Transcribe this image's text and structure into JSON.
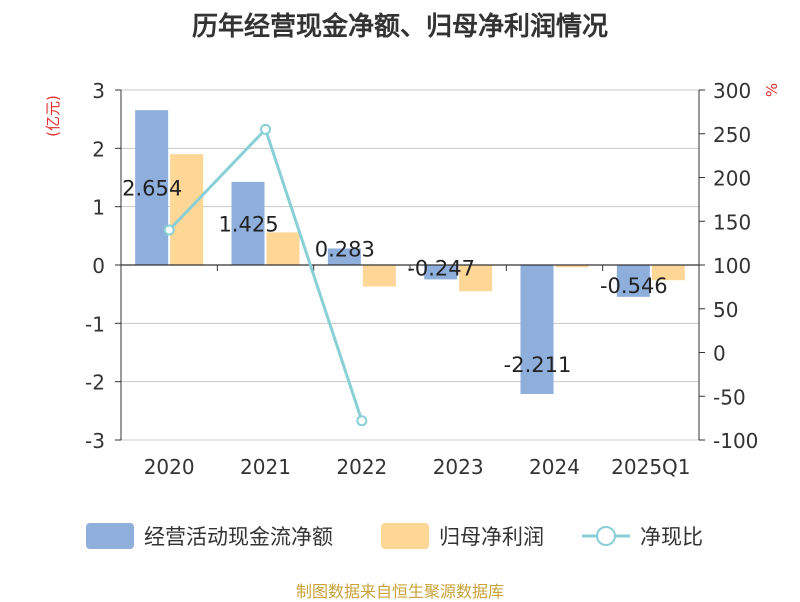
{
  "colors": {
    "bar1": "#8eaedc",
    "bar2": "#fed696",
    "line": "#88d0d5",
    "unit": "#e03030",
    "axis": "#333333",
    "grid": "#c8c8c8",
    "source": "#c8a23a"
  },
  "source_note": "制图数据来自恒生聚源数据库",
  "chart_data": {
    "type": "bar",
    "title": "历年经营现金净额、归母净利润情况",
    "ylabel_left": "(亿元)",
    "ylabel_right": "%",
    "categories": [
      "2020",
      "2021",
      "2022",
      "2023",
      "2024",
      "2025Q1"
    ],
    "ylim_left": [
      -3,
      3
    ],
    "yticks_left": [
      -3,
      -2,
      -1,
      0,
      1,
      2,
      3
    ],
    "ylim_right": [
      -100,
      300
    ],
    "yticks_right": [
      -100,
      -50,
      0,
      50,
      100,
      150,
      200,
      250,
      300
    ],
    "grid": true,
    "legend_position": "bottom",
    "series": [
      {
        "name": "经营活动现金流净额",
        "type": "bar",
        "axis": "left",
        "values": [
          2.654,
          1.425,
          0.283,
          -0.247,
          -2.211,
          -0.546
        ],
        "labels": [
          "2.654",
          "1.425",
          "0.283",
          "-0.247",
          "-2.211",
          "-0.546"
        ]
      },
      {
        "name": "归母净利润",
        "type": "bar",
        "axis": "left",
        "values": [
          1.9,
          0.56,
          -0.37,
          -0.45,
          -0.04,
          -0.26
        ]
      },
      {
        "name": "净现比",
        "type": "line",
        "axis": "right",
        "values": [
          140,
          255,
          -78,
          null,
          null,
          null
        ]
      }
    ]
  }
}
